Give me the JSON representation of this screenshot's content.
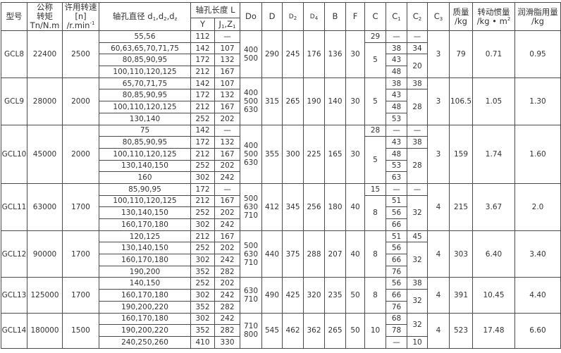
{
  "headers": {
    "model": "型号",
    "torque": [
      "公称",
      "转矩",
      "Tn/N.m"
    ],
    "speed": [
      "许用转速",
      "[n]",
      "/r.min",
      "-1"
    ],
    "bore": {
      "base": "轴孔直径 d",
      "s1": "1",
      "m1": ",d",
      "s2": "2",
      "m2": ",d",
      "s3": "z"
    },
    "length": "轴孔长度 L",
    "Y": "Y",
    "J": {
      "a": "J",
      "s1": "1",
      "b": ",Z",
      "s2": "1"
    },
    "Do": "Do",
    "D": "D",
    "D2": {
      "a": "D",
      "s": "2"
    },
    "D4": {
      "a": "D",
      "s": "4"
    },
    "B": "B",
    "F": "F",
    "C": "C",
    "C1": {
      "a": "C",
      "s": "1"
    },
    "C2": {
      "a": "C",
      "s": "2"
    },
    "C3": {
      "a": "C",
      "s": "3"
    },
    "mass": [
      "质量",
      "/kg"
    ],
    "inertia": [
      "转动惯量",
      "/kg • m",
      "2"
    ],
    "grease": [
      "润滑脂用量",
      "/kg"
    ]
  },
  "models": [
    {
      "model": "GCL8",
      "torque": "22400",
      "speed": "2500",
      "Do": [
        "400",
        "500"
      ],
      "D": "290",
      "D2": "245",
      "D4": "176",
      "B": "136",
      "F": "30",
      "C3": "3",
      "mass": "79",
      "inertia": "0.71",
      "grease": "0.95",
      "bores": [
        {
          "d": "55,56",
          "Y": "112",
          "J": "—"
        },
        {
          "d": "60,63,65,70,71,75",
          "Y": "142",
          "J": "107"
        },
        {
          "d": "80,85,90,95",
          "Y": "172",
          "J": "132"
        },
        {
          "d": "100,110,120,125",
          "Y": "212",
          "J": "167"
        }
      ],
      "C": [
        "29",
        "5",
        null,
        null
      ],
      "C1": [
        "—",
        "38",
        "43",
        "48"
      ],
      "C2": [
        "—",
        "34",
        "20",
        null
      ]
    },
    {
      "model": "GCL9",
      "torque": "28000",
      "speed": "2000",
      "Do": [
        "400",
        "500",
        "630"
      ],
      "D": "315",
      "D2": "265",
      "D4": "190",
      "B": "140",
      "F": "30",
      "C3": "3",
      "mass": "106.5",
      "inertia": "1.05",
      "grease": "1.30",
      "bores": [
        {
          "d": "65,70,71,75",
          "Y": "142",
          "J": "107"
        },
        {
          "d": "80,85,90,95",
          "Y": "172",
          "J": "132"
        },
        {
          "d": "100,110,120,125",
          "Y": "212",
          "J": "167"
        },
        {
          "d": "130,140",
          "Y": "252",
          "J": "202"
        }
      ],
      "C": [
        "5",
        null,
        null,
        null
      ],
      "C1": [
        "38",
        "43",
        "48",
        "53"
      ],
      "C2": [
        "38",
        "28",
        null,
        null
      ]
    },
    {
      "model": "GCL10",
      "torque": "45000",
      "speed": "2000",
      "Do": [
        "400",
        "500",
        "630"
      ],
      "D": "355",
      "D2": "300",
      "D4": "225",
      "B": "165",
      "F": "30",
      "C3": "3",
      "mass": "159",
      "inertia": "1.74",
      "grease": "1.60",
      "bores": [
        {
          "d": "75",
          "Y": "142",
          "J": "—"
        },
        {
          "d": "80,85,90,95",
          "Y": "172",
          "J": "132"
        },
        {
          "d": "100,110,120,125",
          "Y": "212",
          "J": "167"
        },
        {
          "d": "130,140,150",
          "Y": "252",
          "J": "202"
        },
        {
          "d": "160",
          "Y": "302",
          "J": "242"
        }
      ],
      "C": [
        "28",
        "5",
        null,
        null,
        null
      ],
      "C1": [
        "—",
        "43",
        "48",
        "53",
        "63"
      ],
      "C2": [
        "—",
        "38",
        "28",
        null,
        null
      ]
    },
    {
      "model": "GCL11",
      "torque": "63000",
      "speed": "1700",
      "Do": [
        "500",
        "630",
        "710"
      ],
      "D": "412",
      "D2": "345",
      "D4": "256",
      "B": "180",
      "F": "40",
      "C3": "4",
      "mass": "215",
      "inertia": "3.67",
      "grease": "2.0",
      "bores": [
        {
          "d": "85,90,95",
          "Y": "172",
          "J": "—"
        },
        {
          "d": "100,110,120,125",
          "Y": "212",
          "J": "167"
        },
        {
          "d": "130,140,150",
          "Y": "252",
          "J": "202"
        },
        {
          "d": "160,170,180",
          "Y": "302",
          "J": "242"
        }
      ],
      "C": [
        "15",
        "8",
        null,
        null
      ],
      "C1": [
        "—",
        "51",
        "56",
        "66"
      ],
      "C2": [
        "—",
        "32",
        null,
        null
      ]
    },
    {
      "model": "GCL12",
      "torque": "90000",
      "speed": "1700",
      "Do": [
        "500",
        "630",
        "710"
      ],
      "D": "440",
      "D2": "375",
      "D4": "288",
      "B": "207",
      "F": "40",
      "C3": "4",
      "mass": "303",
      "inertia": "6.40",
      "grease": "3.40",
      "bores": [
        {
          "d": "120,125",
          "Y": "212",
          "J": "167"
        },
        {
          "d": "130,140,150",
          "Y": "252",
          "J": "202"
        },
        {
          "d": "160,170,180",
          "Y": "302",
          "J": "242"
        },
        {
          "d": "190,200",
          "Y": "352",
          "J": "282"
        }
      ],
      "C": [
        "8",
        null,
        null,
        null
      ],
      "C1": [
        "51",
        "56",
        "66",
        "76"
      ],
      "C2": [
        "45",
        "32",
        null,
        null
      ]
    },
    {
      "model": "GCL13",
      "torque": "125000",
      "speed": "1700",
      "Do": [
        "630",
        "710"
      ],
      "D": "490",
      "D2": "425",
      "D4": "320",
      "B": "235",
      "F": "50",
      "C3": "4",
      "mass": "391",
      "inertia": "10.45",
      "grease": "4.40",
      "bores": [
        {
          "d": "140,150",
          "Y": "252",
          "J": "202"
        },
        {
          "d": "160,170,180",
          "Y": "302",
          "J": "242"
        },
        {
          "d": "190,200,220",
          "Y": "352",
          "J": "282"
        }
      ],
      "C": [
        "8",
        null,
        null
      ],
      "C1": [
        "56",
        "66",
        "76"
      ],
      "C2": [
        "38",
        "32",
        null
      ]
    },
    {
      "model": "GCL14",
      "torque": "180000",
      "speed": "1500",
      "Do": [
        "710",
        "800"
      ],
      "D": "545",
      "D2": "462",
      "D4": "362",
      "B": "265",
      "F": "50",
      "C3": "4",
      "mass": "523",
      "inertia": "17.48",
      "grease": "6.60",
      "bores": [
        {
          "d": "160,170,180",
          "Y": "302",
          "J": "242"
        },
        {
          "d": "190,200,220",
          "Y": "352",
          "J": "282"
        },
        {
          "d": "240,250,260",
          "Y": "410",
          "J": "330"
        }
      ],
      "C": [
        "10",
        null,
        null
      ],
      "C1": [
        "68",
        "78",
        "—"
      ],
      "C2": [
        "32",
        null,
        "10"
      ]
    }
  ]
}
